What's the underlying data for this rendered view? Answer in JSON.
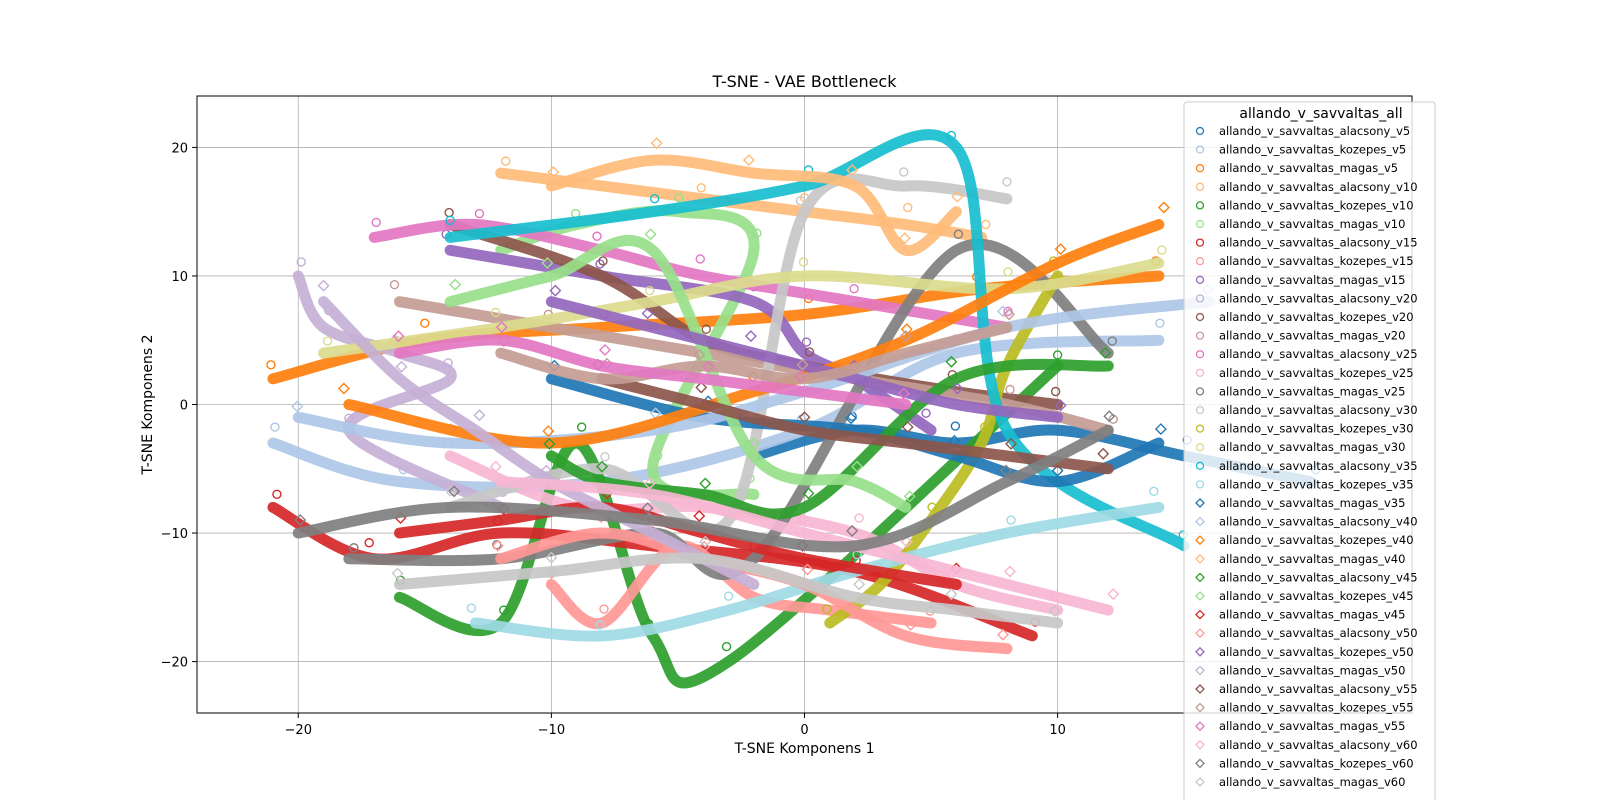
{
  "chart_data": {
    "type": "scatter",
    "title": "T-SNE - VAE Bottleneck",
    "xlabel": "T-SNE Komponens 1",
    "ylabel": "T-SNE Komponens 2",
    "xlim": [
      -24,
      24
    ],
    "ylim": [
      -24,
      24
    ],
    "xticks": [
      -20,
      -10,
      0,
      10
    ],
    "yticks": [
      -20,
      -10,
      0,
      10,
      20
    ],
    "grid": true,
    "legend": {
      "title": "allando_v_savvaltas_all",
      "placement": "upper right, extending past plot"
    },
    "series": [
      {
        "name": "allando_v_savvaltas_alacsony_v5",
        "color": "#1f77b4",
        "marker": "circle",
        "path": [
          [
            -2,
            -4
          ],
          [
            2,
            -2
          ],
          [
            6,
            -3
          ],
          [
            10,
            -2
          ],
          [
            15,
            -4
          ],
          [
            20,
            -6
          ]
        ]
      },
      {
        "name": "allando_v_savvaltas_kozepes_v5",
        "color": "#aec7e8",
        "marker": "circle",
        "path": [
          [
            -21,
            -3
          ],
          [
            -16,
            -6
          ],
          [
            -8,
            -6
          ],
          [
            0,
            -2
          ],
          [
            6,
            4
          ],
          [
            14,
            5
          ]
        ]
      },
      {
        "name": "allando_v_savvaltas_magas_v5",
        "color": "#ff7f0e",
        "marker": "circle",
        "path": [
          [
            -21,
            2
          ],
          [
            -15,
            5
          ],
          [
            -8,
            6
          ],
          [
            0,
            7
          ],
          [
            7,
            9
          ],
          [
            14,
            10
          ]
        ]
      },
      {
        "name": "allando_v_savvaltas_alacsony_v10",
        "color": "#ffbb78",
        "marker": "circle",
        "path": [
          [
            -12,
            18
          ],
          [
            -8,
            17
          ],
          [
            -4,
            16
          ],
          [
            0,
            15
          ],
          [
            4,
            14
          ],
          [
            7,
            13
          ]
        ]
      },
      {
        "name": "allando_v_savvaltas_kozepes_v10",
        "color": "#2ca02c",
        "marker": "circle",
        "path": [
          [
            -16,
            -15
          ],
          [
            -12,
            -17
          ],
          [
            -9,
            -3
          ],
          [
            -6,
            -18
          ],
          [
            -3,
            -20
          ],
          [
            10,
            3
          ]
        ]
      },
      {
        "name": "allando_v_savvaltas_magas_v10",
        "color": "#98df8a",
        "marker": "circle",
        "path": [
          [
            -12,
            12
          ],
          [
            -9,
            14
          ],
          [
            -5,
            15
          ],
          [
            -2,
            12
          ],
          [
            -6,
            -5
          ],
          [
            -2,
            -7
          ]
        ]
      },
      {
        "name": "allando_v_savvaltas_alacsony_v15",
        "color": "#d62728",
        "marker": "circle",
        "path": [
          [
            -21,
            -8
          ],
          [
            -17,
            -12
          ],
          [
            -12,
            -10
          ],
          [
            -6,
            -11
          ],
          [
            2,
            -13
          ],
          [
            9,
            -18
          ]
        ]
      },
      {
        "name": "allando_v_savvaltas_kozepes_v15",
        "color": "#ff9896",
        "marker": "circle",
        "path": [
          [
            -10,
            -14
          ],
          [
            -8,
            -17
          ],
          [
            -5,
            -11
          ],
          [
            -2,
            -15
          ],
          [
            1,
            -16
          ],
          [
            5,
            -17
          ]
        ]
      },
      {
        "name": "allando_v_savvaltas_magas_v15",
        "color": "#9467bd",
        "marker": "circle",
        "path": [
          [
            -14,
            12
          ],
          [
            -8,
            10
          ],
          [
            -2,
            8
          ],
          [
            0,
            4
          ],
          [
            2,
            2
          ],
          [
            5,
            -2
          ]
        ]
      },
      {
        "name": "allando_v_savvaltas_alacsony_v20",
        "color": "#c5b0d5",
        "marker": "circle",
        "path": [
          [
            -20,
            10
          ],
          [
            -19,
            6
          ],
          [
            -16,
            4
          ],
          [
            -14,
            2
          ],
          [
            -18,
            -2
          ],
          [
            -12,
            -8
          ]
        ]
      },
      {
        "name": "allando_v_savvaltas_kozepes_v20",
        "color": "#8c564b",
        "marker": "circle",
        "path": [
          [
            -14,
            14
          ],
          [
            -8,
            10
          ],
          [
            -4,
            5
          ],
          [
            0,
            3
          ],
          [
            6,
            1
          ],
          [
            10,
            0
          ]
        ]
      },
      {
        "name": "allando_v_savvaltas_magas_v20",
        "color": "#c49c94",
        "marker": "circle",
        "path": [
          [
            -16,
            8
          ],
          [
            -10,
            6
          ],
          [
            -4,
            4
          ],
          [
            2,
            2
          ],
          [
            8,
            0
          ],
          [
            12,
            -2
          ]
        ]
      },
      {
        "name": "allando_v_savvaltas_alacsony_v25",
        "color": "#e377c2",
        "marker": "circle",
        "path": [
          [
            -17,
            13
          ],
          [
            -13,
            14
          ],
          [
            -8,
            12
          ],
          [
            -4,
            10
          ],
          [
            2,
            8
          ],
          [
            8,
            6
          ]
        ]
      },
      {
        "name": "allando_v_savvaltas_kozepes_v25",
        "color": "#f7b6d2",
        "marker": "circle",
        "path": [
          [
            -14,
            -4
          ],
          [
            -9,
            -8
          ],
          [
            -4,
            -8
          ],
          [
            2,
            -10
          ],
          [
            6,
            -14
          ],
          [
            10,
            -16
          ]
        ]
      },
      {
        "name": "allando_v_savvaltas_magas_v25",
        "color": "#7f7f7f",
        "marker": "circle",
        "path": [
          [
            -18,
            -12
          ],
          [
            -12,
            -12
          ],
          [
            -6,
            -10
          ],
          [
            -2,
            -12
          ],
          [
            6,
            12
          ],
          [
            12,
            4
          ]
        ]
      },
      {
        "name": "allando_v_savvaltas_alacsony_v30",
        "color": "#c7c7c7",
        "marker": "circle",
        "path": [
          [
            -14,
            -8
          ],
          [
            -8,
            -5
          ],
          [
            -3,
            -9
          ],
          [
            0,
            15
          ],
          [
            4,
            17
          ],
          [
            8,
            16
          ]
        ]
      },
      {
        "name": "allando_v_savvaltas_kozepes_v30",
        "color": "#bcbd22",
        "marker": "circle",
        "path": [
          [
            1,
            -17
          ],
          [
            3,
            -14
          ],
          [
            5,
            -9
          ],
          [
            7,
            -3
          ],
          [
            8,
            3
          ],
          [
            10,
            10
          ]
        ]
      },
      {
        "name": "allando_v_savvaltas_magas_v30",
        "color": "#dbdb8d",
        "marker": "circle",
        "path": [
          [
            -19,
            4
          ],
          [
            -12,
            6
          ],
          [
            -6,
            8
          ],
          [
            0,
            10
          ],
          [
            8,
            9
          ],
          [
            14,
            11
          ]
        ]
      },
      {
        "name": "allando_v_savvaltas_alacsony_v35",
        "color": "#17becf",
        "marker": "circle",
        "path": [
          [
            -14,
            13
          ],
          [
            -6,
            15
          ],
          [
            0,
            17
          ],
          [
            6,
            20
          ],
          [
            8,
            -2
          ],
          [
            15,
            -11
          ]
        ]
      },
      {
        "name": "allando_v_savvaltas_kozepes_v35",
        "color": "#9edae5",
        "marker": "circle",
        "path": [
          [
            -13,
            -17
          ],
          [
            -8,
            -18
          ],
          [
            -3,
            -16
          ],
          [
            2,
            -13
          ],
          [
            8,
            -10
          ],
          [
            14,
            -8
          ]
        ]
      },
      {
        "name": "allando_v_savvaltas_magas_v35",
        "color": "#1f77b4",
        "marker": "diamond",
        "path": [
          [
            -10,
            2
          ],
          [
            -4,
            -1
          ],
          [
            2,
            -2
          ],
          [
            6,
            -4
          ],
          [
            10,
            -6
          ],
          [
            14,
            -3
          ]
        ]
      },
      {
        "name": "allando_v_savvaltas_alacsony_v40",
        "color": "#aec7e8",
        "marker": "diamond",
        "path": [
          [
            -20,
            -1
          ],
          [
            -14,
            -3
          ],
          [
            -6,
            -2
          ],
          [
            0,
            1
          ],
          [
            8,
            6
          ],
          [
            16,
            8
          ]
        ]
      },
      {
        "name": "allando_v_savvaltas_kozepes_v40",
        "color": "#ff7f0e",
        "marker": "diamond",
        "path": [
          [
            -18,
            0
          ],
          [
            -10,
            -3
          ],
          [
            -2,
            1
          ],
          [
            4,
            5
          ],
          [
            10,
            11
          ],
          [
            14,
            14
          ]
        ]
      },
      {
        "name": "allando_v_savvaltas_magas_v40",
        "color": "#ffbb78",
        "marker": "diamond",
        "path": [
          [
            -10,
            17
          ],
          [
            -6,
            19
          ],
          [
            -2,
            18
          ],
          [
            2,
            17
          ],
          [
            4,
            12
          ],
          [
            6,
            15
          ]
        ]
      },
      {
        "name": "allando_v_savvaltas_alacsony_v45",
        "color": "#2ca02c",
        "marker": "diamond",
        "path": [
          [
            -10,
            -4
          ],
          [
            -8,
            -6
          ],
          [
            -4,
            -7
          ],
          [
            0,
            -8
          ],
          [
            6,
            2
          ],
          [
            12,
            3
          ]
        ]
      },
      {
        "name": "allando_v_savvaltas_kozepes_v45",
        "color": "#98df8a",
        "marker": "diamond",
        "path": [
          [
            -14,
            8
          ],
          [
            -10,
            10
          ],
          [
            -6,
            12
          ],
          [
            -2,
            -4
          ],
          [
            2,
            -6
          ],
          [
            4,
            -8
          ]
        ]
      },
      {
        "name": "allando_v_savvaltas_magas_v45",
        "color": "#d62728",
        "marker": "diamond",
        "path": [
          [
            -16,
            -10
          ],
          [
            -12,
            -9
          ],
          [
            -8,
            -8
          ],
          [
            -4,
            -10
          ],
          [
            0,
            -12
          ],
          [
            6,
            -14
          ]
        ]
      },
      {
        "name": "allando_v_savvaltas_alacsony_v50",
        "color": "#ff9896",
        "marker": "diamond",
        "path": [
          [
            -12,
            -12
          ],
          [
            -8,
            -10
          ],
          [
            -4,
            -12
          ],
          [
            0,
            -14
          ],
          [
            4,
            -18
          ],
          [
            8,
            -19
          ]
        ]
      },
      {
        "name": "allando_v_savvaltas_kozepes_v50",
        "color": "#9467bd",
        "marker": "diamond",
        "path": [
          [
            -10,
            8
          ],
          [
            -6,
            6
          ],
          [
            -2,
            4
          ],
          [
            2,
            2
          ],
          [
            6,
            0
          ],
          [
            10,
            -1
          ]
        ]
      },
      {
        "name": "allando_v_savvaltas_magas_v50",
        "color": "#c5b0d5",
        "marker": "diamond",
        "path": [
          [
            -19,
            8
          ],
          [
            -16,
            2
          ],
          [
            -13,
            -2
          ],
          [
            -10,
            -6
          ],
          [
            -6,
            -10
          ],
          [
            -2,
            -14
          ]
        ]
      },
      {
        "name": "allando_v_savvaltas_alacsony_v55",
        "color": "#8c564b",
        "marker": "diamond",
        "path": [
          [
            -8,
            2
          ],
          [
            -4,
            0
          ],
          [
            0,
            -2
          ],
          [
            4,
            -3
          ],
          [
            8,
            -4
          ],
          [
            12,
            -5
          ]
        ]
      },
      {
        "name": "allando_v_savvaltas_kozepes_v55",
        "color": "#c49c94",
        "marker": "diamond",
        "path": [
          [
            -12,
            4
          ],
          [
            -8,
            2
          ],
          [
            -4,
            3
          ],
          [
            0,
            2
          ],
          [
            4,
            4
          ],
          [
            8,
            6
          ]
        ]
      },
      {
        "name": "allando_v_savvaltas_magas_v55",
        "color": "#e377c2",
        "marker": "diamond",
        "path": [
          [
            -16,
            4
          ],
          [
            -12,
            5
          ],
          [
            -8,
            3
          ],
          [
            -4,
            2
          ],
          [
            0,
            1
          ],
          [
            4,
            0
          ]
        ]
      },
      {
        "name": "allando_v_savvaltas_alacsony_v60",
        "color": "#f7b6d2",
        "marker": "diamond",
        "path": [
          [
            -12,
            -6
          ],
          [
            -6,
            -7
          ],
          [
            0,
            -10
          ],
          [
            4,
            -12
          ],
          [
            8,
            -14
          ],
          [
            12,
            -16
          ]
        ]
      },
      {
        "name": "allando_v_savvaltas_kozepes_v60",
        "color": "#7f7f7f",
        "marker": "diamond",
        "path": [
          [
            -20,
            -10
          ],
          [
            -14,
            -8
          ],
          [
            -6,
            -9
          ],
          [
            2,
            -11
          ],
          [
            8,
            -6
          ],
          [
            12,
            -2
          ]
        ]
      },
      {
        "name": "allando_v_savvaltas_magas_v60",
        "color": "#c7c7c7",
        "marker": "diamond",
        "path": [
          [
            -16,
            -14
          ],
          [
            -10,
            -13
          ],
          [
            -4,
            -12
          ],
          [
            2,
            -15
          ],
          [
            6,
            -16
          ],
          [
            10,
            -17
          ]
        ]
      }
    ]
  }
}
